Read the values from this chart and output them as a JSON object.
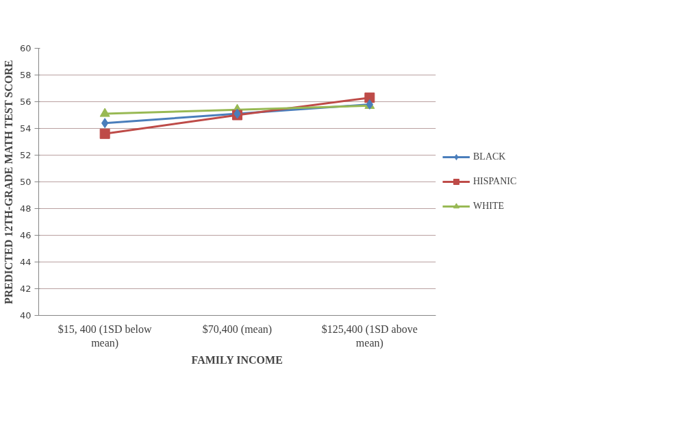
{
  "chart_data": {
    "type": "line",
    "categories": [
      "$15, 400 (1SD below mean)",
      "$70,400 (mean)",
      "$125,400 (1SD above mean)"
    ],
    "series": [
      {
        "name": "BLACK",
        "color": "#4a7ebb",
        "marker": "diamond",
        "values": [
          54.4,
          55.1,
          55.8
        ]
      },
      {
        "name": "HISPANIC",
        "color": "#be4b48",
        "marker": "square",
        "values": [
          53.6,
          55.0,
          56.3
        ]
      },
      {
        "name": "WHITE",
        "color": "#98b954",
        "marker": "triangle",
        "values": [
          55.1,
          55.4,
          55.7
        ]
      }
    ],
    "xlabel": "FAMILY INCOME",
    "ylabel": "PREDICTED 12TH-GRADE MATH TEST SCORE",
    "ylim": [
      40,
      60
    ],
    "yticks": [
      40,
      42,
      44,
      46,
      48,
      50,
      52,
      54,
      56,
      58,
      60
    ],
    "grid": "y",
    "legend": "right"
  }
}
